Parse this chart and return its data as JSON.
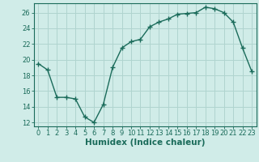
{
  "x": [
    0,
    1,
    2,
    3,
    4,
    5,
    6,
    7,
    8,
    9,
    10,
    11,
    12,
    13,
    14,
    15,
    16,
    17,
    18,
    19,
    20,
    21,
    22,
    23
  ],
  "y": [
    19.5,
    18.7,
    15.2,
    15.2,
    15.0,
    12.7,
    12.0,
    14.3,
    19.0,
    21.5,
    22.3,
    22.6,
    24.2,
    24.8,
    25.2,
    25.8,
    25.9,
    26.0,
    26.7,
    26.5,
    26.0,
    24.8,
    21.5,
    18.5
  ],
  "line_color": "#1a6b5a",
  "marker": "+",
  "marker_size": 4,
  "marker_lw": 1.0,
  "background_color": "#d0ece8",
  "grid_color": "#b0d4cf",
  "xlabel": "Humidex (Indice chaleur)",
  "xlim": [
    -0.5,
    23.5
  ],
  "ylim": [
    11.5,
    27.2
  ],
  "yticks": [
    12,
    14,
    16,
    18,
    20,
    22,
    24,
    26
  ],
  "xticks": [
    0,
    1,
    2,
    3,
    4,
    5,
    6,
    7,
    8,
    9,
    10,
    11,
    12,
    13,
    14,
    15,
    16,
    17,
    18,
    19,
    20,
    21,
    22,
    23
  ],
  "tick_color": "#1a6b5a",
  "label_fontsize": 6,
  "xlabel_fontsize": 7.5,
  "line_width": 1.0
}
